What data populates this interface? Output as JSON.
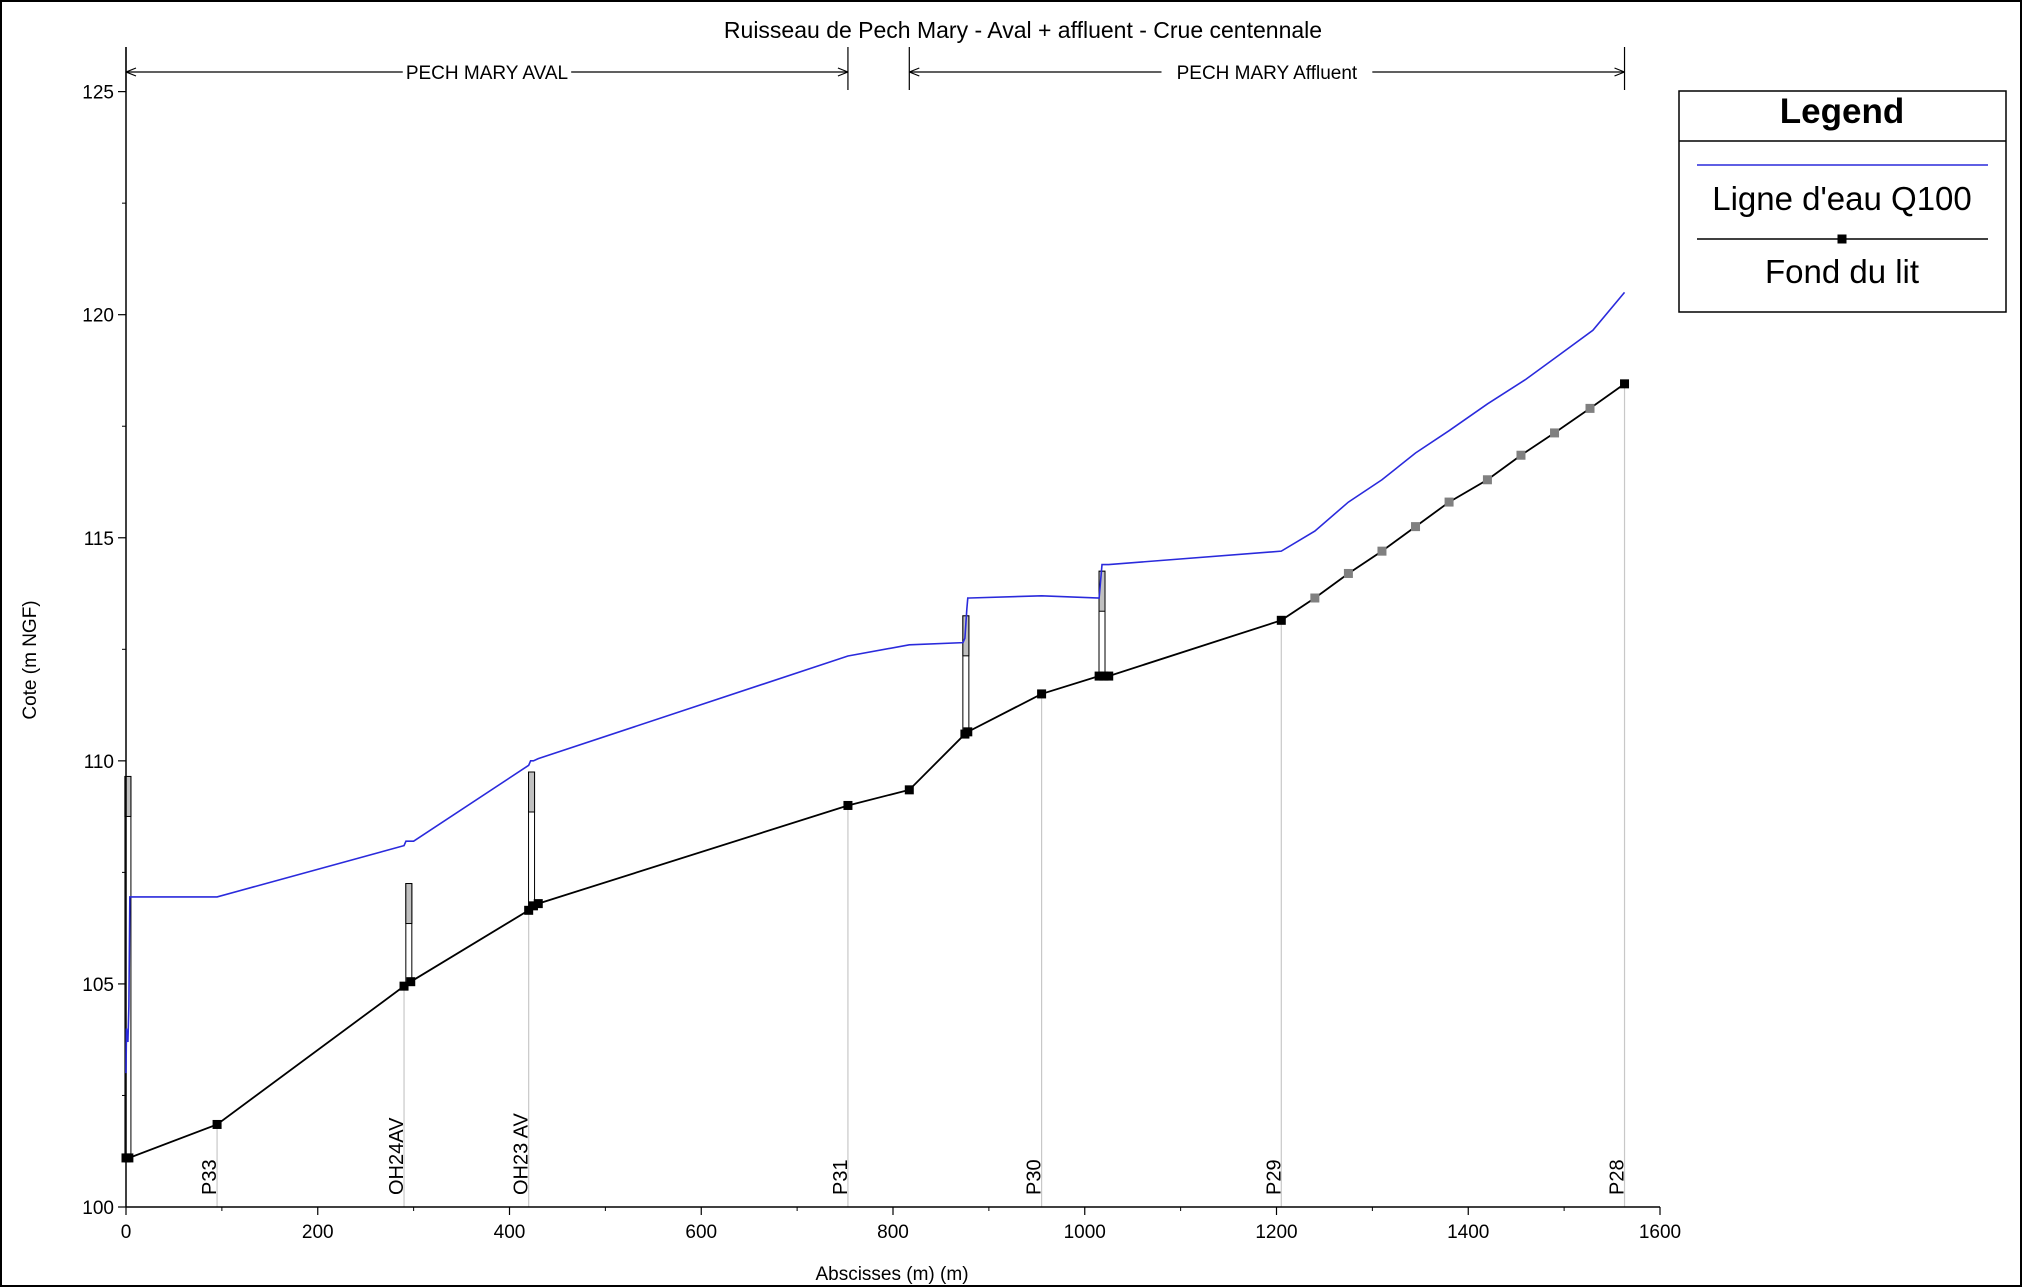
{
  "chart_data": {
    "type": "line",
    "title": "Ruisseau de Pech Mary - Aval + affluent - Crue centennale",
    "xlabel": "Abscisses (m) (m)",
    "ylabel": "Cote (m NGF)",
    "xlim": [
      0,
      1600
    ],
    "ylim": [
      100,
      126
    ],
    "x_ticks": [
      0,
      200,
      400,
      600,
      800,
      1000,
      1200,
      1400,
      1600
    ],
    "y_ticks": [
      100,
      105,
      110,
      115,
      120,
      125
    ],
    "legend": {
      "title": "Legend",
      "placement": "top-right",
      "entries": [
        "Ligne d'eau Q100",
        "Fond du lit"
      ]
    },
    "reaches": [
      {
        "label": "PECH MARY AVAL",
        "x_start": 0,
        "x_end": 753
      },
      {
        "label": "PECH MARY Affluent",
        "x_start": 817,
        "x_end": 1563
      }
    ],
    "colors": {
      "water": "#2a2adc",
      "bed": "#000000",
      "bed_marker_alt": "#808080",
      "profile_line": "#c8c8c8",
      "structure_fill": "#c0c0c0"
    },
    "series": [
      {
        "name": "Ligne d'eau Q100",
        "x": [
          0,
          0.5,
          1,
          2,
          3,
          4,
          5,
          95,
          290,
          292,
          295,
          300,
          420,
          422,
          425,
          430,
          753,
          817,
          873,
          875,
          877,
          878,
          880,
          955,
          1015,
          1018,
          1020,
          1025,
          1205,
          1240,
          1275,
          1310,
          1345,
          1380,
          1420,
          1460,
          1495,
          1530,
          1563
        ],
        "y": [
          103.0,
          104.0,
          103.8,
          103.7,
          104.5,
          106.95,
          106.95,
          106.95,
          108.1,
          108.2,
          108.2,
          108.2,
          109.9,
          110.0,
          110.0,
          110.05,
          112.35,
          112.6,
          112.65,
          112.75,
          113.4,
          113.65,
          113.65,
          113.7,
          113.65,
          114.4,
          114.4,
          114.4,
          114.7,
          115.15,
          115.8,
          116.3,
          116.9,
          117.4,
          118.0,
          118.55,
          119.1,
          119.65,
          120.5
        ]
      },
      {
        "name": "Fond du lit",
        "x": [
          0,
          3,
          95,
          290,
          297,
          420,
          425,
          430,
          753,
          817,
          875,
          878,
          955,
          1015,
          1020,
          1025,
          1205,
          1240,
          1275,
          1310,
          1345,
          1380,
          1420,
          1455,
          1490,
          1527,
          1563
        ],
        "y": [
          101.1,
          101.1,
          101.85,
          104.95,
          105.05,
          106.65,
          106.75,
          106.8,
          109.0,
          109.35,
          110.6,
          110.65,
          111.5,
          111.9,
          111.9,
          111.9,
          113.15,
          113.65,
          114.2,
          114.7,
          115.25,
          115.8,
          116.3,
          116.85,
          117.35,
          117.9,
          118.45
        ]
      }
    ],
    "profiles": [
      {
        "label": "P33",
        "x": 95,
        "y_bed": 101.85
      },
      {
        "label": "OH24AV",
        "x": 290,
        "y_bed": 104.95
      },
      {
        "label": "OH23 AV",
        "x": 420,
        "y_bed": 106.65
      },
      {
        "label": "P31",
        "x": 753,
        "y_bed": 109.0
      },
      {
        "label": "P30",
        "x": 955,
        "y_bed": 111.5
      },
      {
        "label": "P29",
        "x": 1205,
        "y_bed": 113.15
      },
      {
        "label": "P28",
        "x": 1563,
        "y_bed": 118.45
      }
    ],
    "structures": [
      {
        "x": 2,
        "y_bottom": 101.1,
        "y_top": 109.65
      },
      {
        "x": 295,
        "y_bottom": 105.0,
        "y_top": 107.25
      },
      {
        "x": 423,
        "y_bottom": 106.7,
        "y_top": 109.75
      },
      {
        "x": 876,
        "y_bottom": 110.62,
        "y_top": 113.25
      },
      {
        "x": 1018,
        "y_bottom": 111.9,
        "y_top": 114.25
      }
    ]
  }
}
